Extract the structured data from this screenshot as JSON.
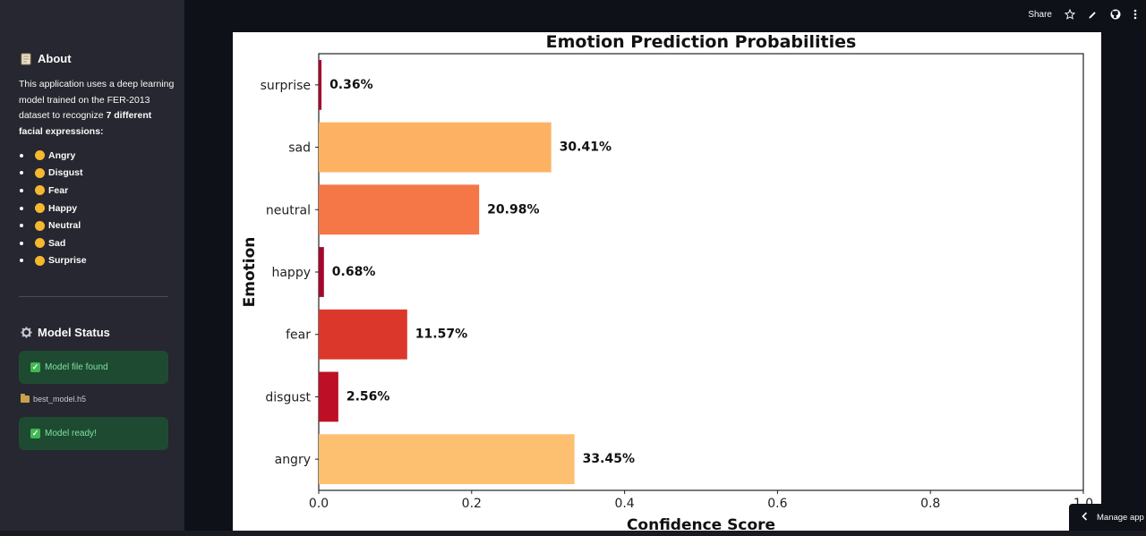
{
  "sidebar": {
    "about": {
      "icon": "notebook-icon",
      "title": "About",
      "text_pre": "This application uses a deep learning model trained on the FER-2013 dataset to recognize ",
      "text_bold": "7 different facial expressions:",
      "emotions": [
        "Angry",
        "Disgust",
        "Fear",
        "Happy",
        "Neutral",
        "Sad",
        "Surprise"
      ]
    },
    "model_status": {
      "icon": "gear-icon",
      "title": "Model Status",
      "file_found": "Model file found",
      "file_name": "best_model.h5",
      "ready": "Model ready!"
    }
  },
  "toolbar": {
    "share_label": "Share"
  },
  "manage_app": {
    "label": "Manage app"
  },
  "chart_data": {
    "type": "bar",
    "orientation": "horizontal",
    "title": "Emotion Prediction Probabilities",
    "xlabel": "Confidence Score",
    "ylabel": "Emotion",
    "categories": [
      "angry",
      "disgust",
      "fear",
      "happy",
      "neutral",
      "sad",
      "surprise"
    ],
    "values": [
      0.3345,
      0.0256,
      0.1157,
      0.0068,
      0.2098,
      0.3041,
      0.0036
    ],
    "data_labels": [
      "33.45%",
      "2.56%",
      "11.57%",
      "0.68%",
      "20.98%",
      "30.41%",
      "0.36%"
    ],
    "colors": [
      "#fdc071",
      "#bd0f26",
      "#dc372b",
      "#a6052b",
      "#f57647",
      "#fdb263",
      "#a8032c"
    ],
    "xlim": [
      0,
      1.0
    ],
    "xticks": [
      "0.0",
      "0.2",
      "0.4",
      "0.6",
      "0.8",
      "1.0"
    ],
    "grid": false
  }
}
